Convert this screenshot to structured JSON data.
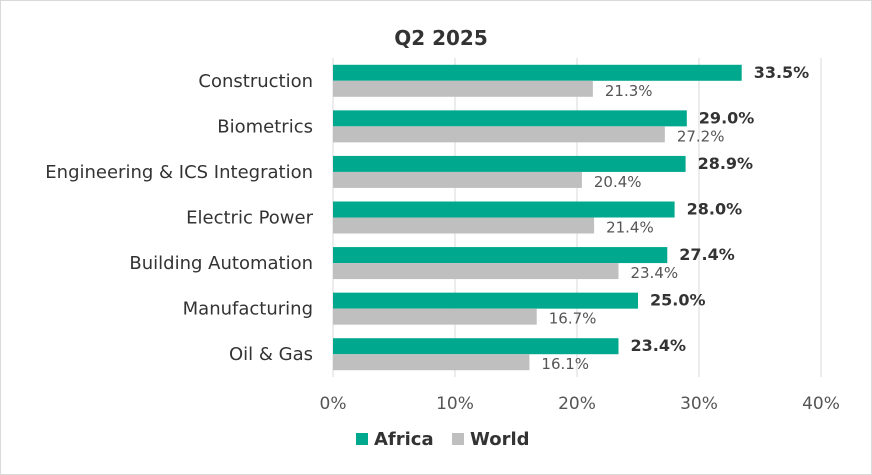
{
  "chart_data": {
    "type": "bar",
    "orientation": "horizontal",
    "title": "Q2 2025",
    "categories": [
      "Construction",
      "Biometrics",
      "Engineering & ICS Integration",
      "Electric Power",
      "Building Automation",
      "Manufacturing",
      "Oil & Gas"
    ],
    "series": [
      {
        "name": "Africa",
        "color": "#00A88E",
        "values": [
          33.5,
          29.0,
          28.9,
          28.0,
          27.4,
          25.0,
          23.4
        ],
        "labels": [
          "33.5%",
          "29.0%",
          "28.9%",
          "28.0%",
          "27.4%",
          "25.0%",
          "23.4%"
        ]
      },
      {
        "name": "World",
        "color": "#BFBFBF",
        "values": [
          21.3,
          27.2,
          20.4,
          21.4,
          23.4,
          16.7,
          16.1
        ],
        "labels": [
          "21.3%",
          "27.2%",
          "20.4%",
          "21.4%",
          "23.4%",
          "16.7%",
          "16.1%"
        ]
      }
    ],
    "xlim": [
      0,
      40
    ],
    "xticks": [
      0,
      10,
      20,
      30,
      40
    ],
    "xtick_labels": [
      "0%",
      "10%",
      "20%",
      "30%",
      "40%"
    ],
    "grid": true,
    "legend_position": "bottom"
  }
}
